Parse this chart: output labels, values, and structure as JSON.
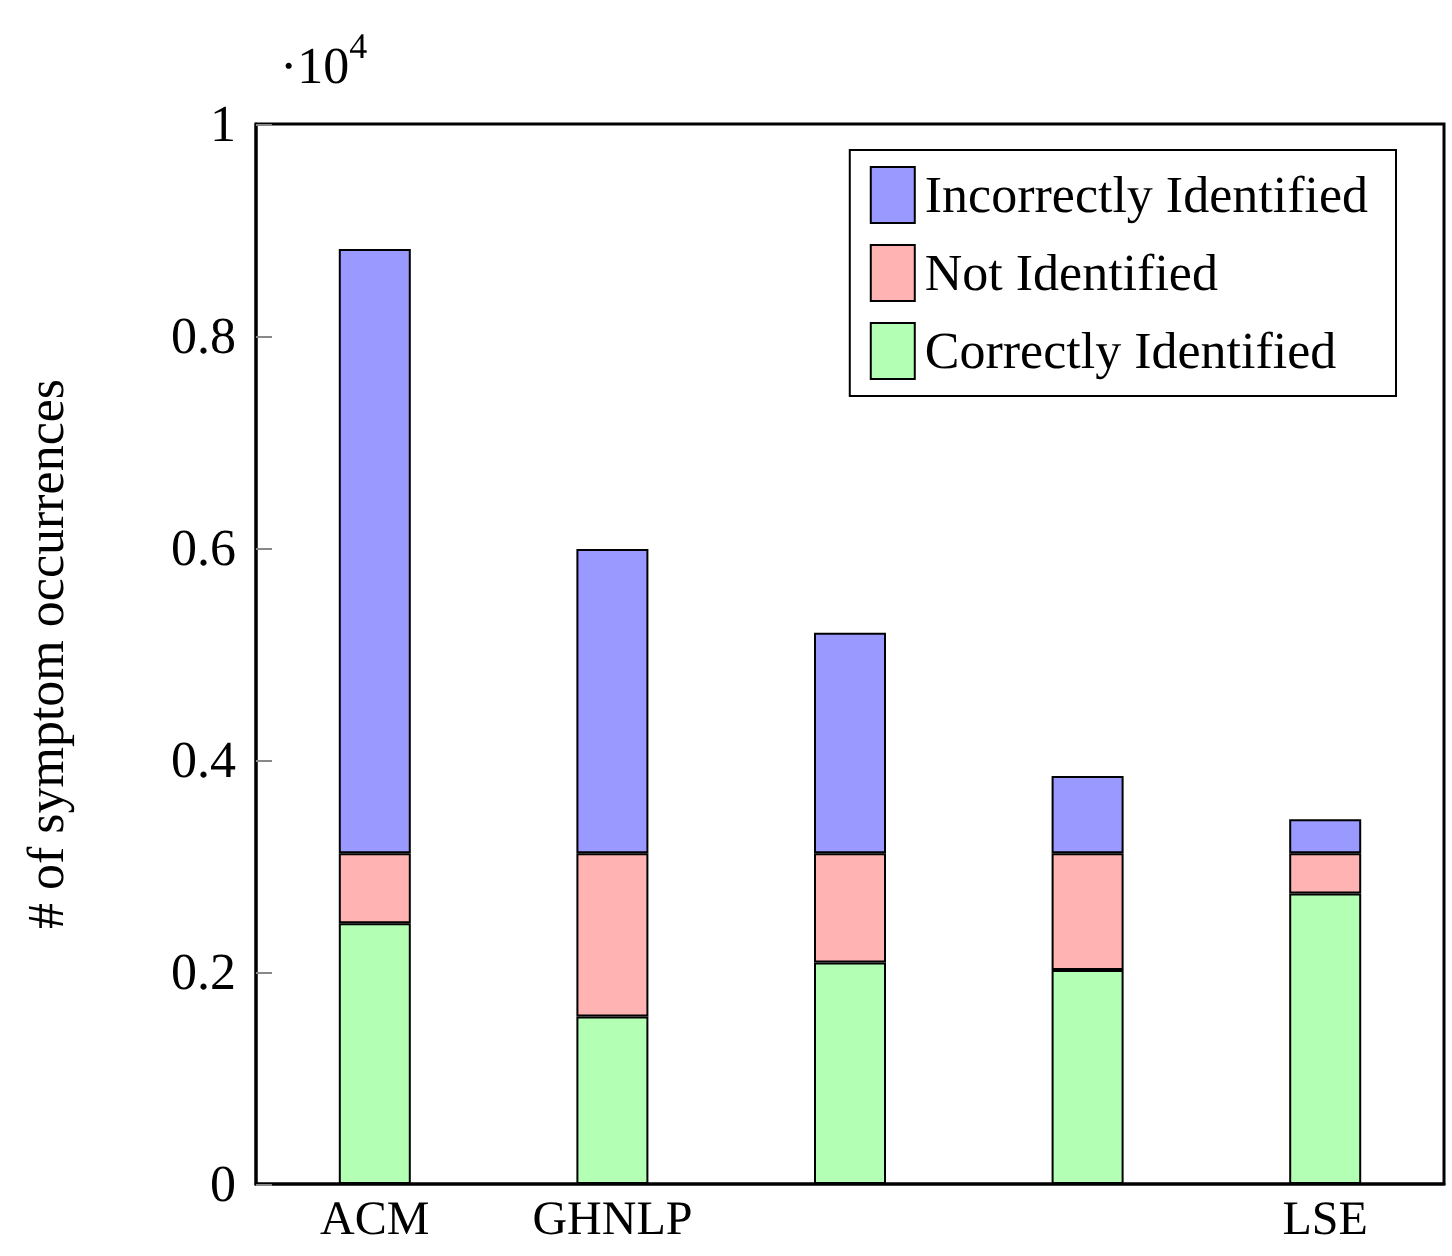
{
  "chart_data": {
    "type": "bar",
    "stacked": true,
    "ylabel": "# of symptom occurrences",
    "annotations": [
      "·10$^{4}$"
    ],
    "categories": [
      "ACM",
      "GHNLP",
      null,
      null,
      "LSE"
    ],
    "series": [
      {
        "name": "Correctly Identified",
        "color": "#b3ffb3",
        "values": [
          0.246,
          0.158,
          0.209,
          0.202,
          0.274
        ]
      },
      {
        "name": "Not Identified",
        "color": "#ffb3b3",
        "values": [
          0.066,
          0.154,
          0.103,
          0.11,
          0.038
        ]
      },
      {
        "name": "Incorrectly Identified",
        "color": "#9999ff",
        "values": [
          0.57,
          0.287,
          0.208,
          0.073,
          0.032
        ]
      }
    ],
    "ylim": [
      0,
      1
    ],
    "yticks": [
      0,
      0.2,
      0.4,
      0.6,
      0.8,
      1
    ],
    "grid": false,
    "legend": "top right"
  }
}
